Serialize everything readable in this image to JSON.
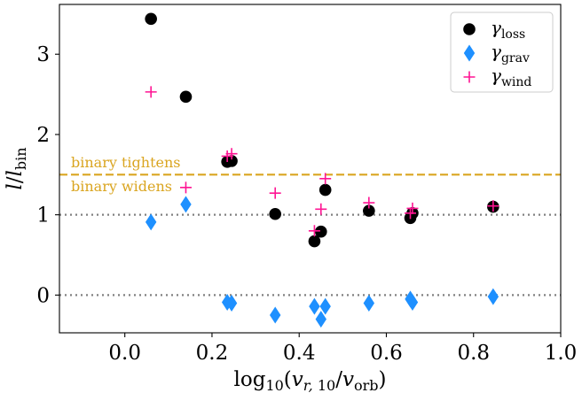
{
  "chart_data": {
    "type": "scatter",
    "xlabel": "log10(v_r,10/v_orb)",
    "ylabel": "l/l_bin",
    "xlim": [
      -0.15,
      1.0
    ],
    "ylim": [
      -0.47,
      3.62
    ],
    "xticks": [
      0.0,
      0.2,
      0.4,
      0.6,
      0.8,
      1.0
    ],
    "xtick_labels": [
      "0.0",
      "0.2",
      "0.4",
      "0.6",
      "0.8",
      "1.0"
    ],
    "yticks": [
      0,
      1,
      2,
      3
    ],
    "ytick_labels": [
      "0",
      "1",
      "2",
      "3"
    ],
    "grid": false,
    "legend_position": "top-right",
    "series": [
      {
        "name": "γ_loss",
        "marker": "circle",
        "color": "#000000",
        "points": [
          [
            0.06,
            3.44
          ],
          [
            0.14,
            2.47
          ],
          [
            0.235,
            1.66
          ],
          [
            0.245,
            1.67
          ],
          [
            0.345,
            1.01
          ],
          [
            0.435,
            0.67
          ],
          [
            0.45,
            0.79
          ],
          [
            0.46,
            1.31
          ],
          [
            0.56,
            1.05
          ],
          [
            0.655,
            0.96
          ],
          [
            0.66,
            1.02
          ],
          [
            0.845,
            1.1
          ]
        ]
      },
      {
        "name": "γ_grav",
        "marker": "diamond",
        "color": "#1e90ff",
        "points": [
          [
            0.06,
            0.91
          ],
          [
            0.14,
            1.13
          ],
          [
            0.235,
            -0.09
          ],
          [
            0.245,
            -0.1
          ],
          [
            0.345,
            -0.25
          ],
          [
            0.435,
            -0.14
          ],
          [
            0.45,
            -0.3
          ],
          [
            0.46,
            -0.14
          ],
          [
            0.56,
            -0.1
          ],
          [
            0.655,
            -0.05
          ],
          [
            0.66,
            -0.09
          ],
          [
            0.845,
            -0.02
          ]
        ]
      },
      {
        "name": "γ_wind",
        "marker": "plus",
        "color": "#ff1493",
        "points": [
          [
            0.06,
            2.53
          ],
          [
            0.14,
            1.34
          ],
          [
            0.235,
            1.73
          ],
          [
            0.245,
            1.76
          ],
          [
            0.345,
            1.27
          ],
          [
            0.435,
            0.8
          ],
          [
            0.45,
            1.07
          ],
          [
            0.46,
            1.45
          ],
          [
            0.56,
            1.15
          ],
          [
            0.655,
            1.02
          ],
          [
            0.66,
            1.08
          ],
          [
            0.845,
            1.11
          ]
        ]
      }
    ],
    "reference_lines": [
      {
        "y": 1.5,
        "style": "dashed",
        "color": "#daa520"
      },
      {
        "y": 1.0,
        "style": "dotted",
        "color": "#808080"
      },
      {
        "y": 0.0,
        "style": "dotted",
        "color": "#808080"
      }
    ],
    "annotations": [
      {
        "text": "binary tightens",
        "color": "#daa520"
      },
      {
        "text": "binary widens",
        "color": "#daa520"
      }
    ]
  }
}
